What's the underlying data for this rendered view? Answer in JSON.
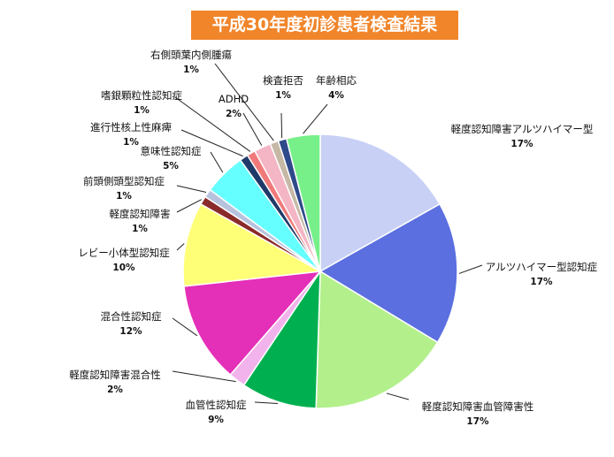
{
  "chart_data": {
    "type": "pie",
    "title": "平成30年度初診患者検査結果",
    "slices": [
      {
        "label": "軽度認知障害アルツハイマー型",
        "pct_label": "17%",
        "value": 17,
        "color": "#c8d0f5"
      },
      {
        "label": "アルツハイマー型認知症",
        "pct_label": "17%",
        "value": 17,
        "color": "#5b6fe0"
      },
      {
        "label": "軽度認知障害血管障害性",
        "pct_label": "17%",
        "value": 17,
        "color": "#b3f08c"
      },
      {
        "label": "血管性認知症",
        "pct_label": "9%",
        "value": 9,
        "color": "#00b050"
      },
      {
        "label": "軽度認知障害混合性",
        "pct_label": "2%",
        "value": 2,
        "color": "#f2b3ec"
      },
      {
        "label": "混合性認知症",
        "pct_label": "12%",
        "value": 12,
        "color": "#e42fb8"
      },
      {
        "label": "レビー小体型認知症",
        "pct_label": "10%",
        "value": 10,
        "color": "#ffff77"
      },
      {
        "label": "軽度認知障害",
        "pct_label": "1%",
        "value": 1,
        "color": "#8b2a2a"
      },
      {
        "label": "前頭側頭型認知症",
        "pct_label": "1%",
        "value": 1,
        "color": "#b7c3dd"
      },
      {
        "label": "意味性認知症",
        "pct_label": "5%",
        "value": 5,
        "color": "#66ffff"
      },
      {
        "label": "進行性核上性麻痺",
        "pct_label": "1%",
        "value": 1,
        "color": "#1f3a68"
      },
      {
        "label": "嗜銀顆粒性認知症",
        "pct_label": "1%",
        "value": 1,
        "color": "#f07a7a"
      },
      {
        "label": "ADHD",
        "pct_label": "2%",
        "value": 2,
        "color": "#f4b6c4"
      },
      {
        "label": "右側頭葉内側腫瘍",
        "pct_label": "1%",
        "value": 1,
        "color": "#c6b8a6"
      },
      {
        "label": "検査拒否",
        "pct_label": "1%",
        "value": 1,
        "color": "#2e4a8a"
      },
      {
        "label": "年齢相応",
        "pct_label": "4%",
        "value": 4,
        "color": "#77f08a"
      }
    ]
  }
}
